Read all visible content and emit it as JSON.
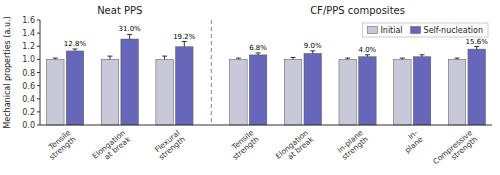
{
  "chart_data": {
    "type": "bar",
    "ylabel": "Mechanical properties (a.u.)",
    "sections": [
      {
        "title": "Neat PPS",
        "count": 3
      },
      {
        "title": "CF/PPS composites",
        "count": 5
      }
    ],
    "categories": [
      "Tensile\nstrength",
      "Elongation\nat break",
      "Flexural\nstrength",
      "Tensile\nstrength",
      "Elongation\nat break",
      "In-plane\nstrength",
      "In-\nplane",
      "Compressive\nstrength"
    ],
    "series": [
      {
        "name": "Initial",
        "color": "#c8c8d8",
        "values": [
          1.0,
          1.0,
          1.0,
          1.0,
          1.0,
          1.0,
          1.0,
          1.0
        ],
        "errors": [
          0.02,
          0.05,
          0.05,
          0.02,
          0.03,
          0.02,
          0.02,
          0.02
        ]
      },
      {
        "name": "Self-nucleation",
        "color": "#6666bb",
        "values": [
          1.128,
          1.31,
          1.192,
          1.068,
          1.09,
          1.04,
          1.04,
          1.156
        ],
        "errors": [
          0.03,
          0.07,
          0.08,
          0.03,
          0.04,
          0.03,
          0.03,
          0.04
        ],
        "annotations": [
          "12.8%",
          "31.0%",
          "19.2%",
          "6.8%",
          "9.0%",
          "4.0%",
          null,
          "15.6%"
        ]
      }
    ],
    "ylim": [
      0.0,
      1.6
    ],
    "yticks": [
      {
        "value": 0,
        "label": "0.0"
      },
      0.2,
      0.4,
      0.6,
      0.8,
      {
        "value": 1,
        "label": "1.0"
      },
      1.2,
      1.4,
      1.6
    ],
    "grid": false,
    "legend": "upper right"
  }
}
